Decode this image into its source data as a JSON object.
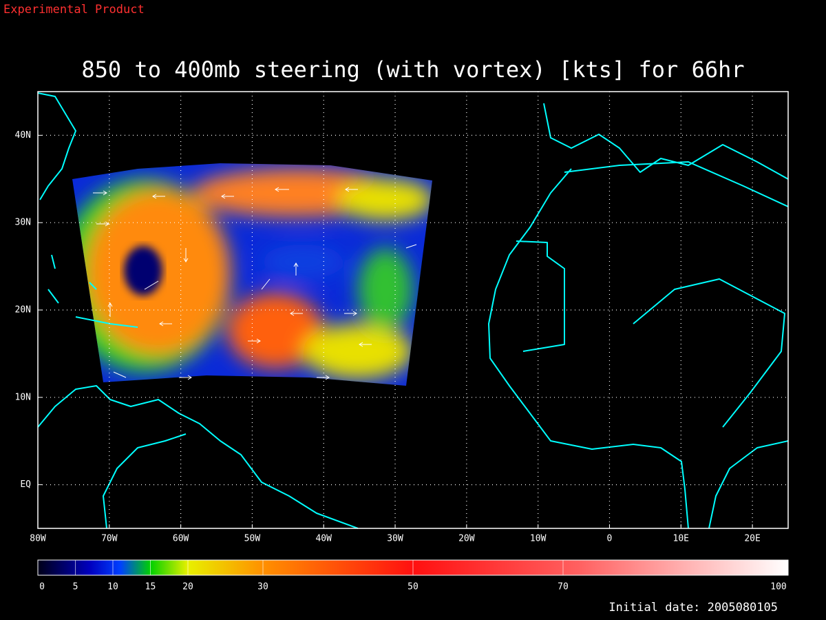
{
  "header": {
    "label": "Experimental Product"
  },
  "chart_data": {
    "type": "map",
    "title": "850 to 400mb steering (with vortex) [kts] for 66hr",
    "xlim": [
      -80,
      25
    ],
    "ylim": [
      -5,
      45
    ],
    "xticks": [
      {
        "value": -80,
        "label": "80W"
      },
      {
        "value": -70,
        "label": "70W"
      },
      {
        "value": -60,
        "label": "60W"
      },
      {
        "value": -50,
        "label": "50W"
      },
      {
        "value": -40,
        "label": "40W"
      },
      {
        "value": -30,
        "label": "30W"
      },
      {
        "value": -20,
        "label": "20W"
      },
      {
        "value": -10,
        "label": "10W"
      },
      0,
      {
        "value": 10,
        "label": "10E"
      },
      {
        "value": 20,
        "label": "20E"
      }
    ],
    "yticks": [
      {
        "value": 0,
        "label": "EQ"
      },
      {
        "value": 10,
        "label": "10N"
      },
      {
        "value": 20,
        "label": "20N"
      },
      {
        "value": 30,
        "label": "30N"
      },
      {
        "value": 40,
        "label": "40N"
      }
    ],
    "grid": true,
    "colorbar": {
      "lim": [
        0,
        100
      ],
      "ticks": [
        0,
        5,
        10,
        15,
        20,
        30,
        50,
        70,
        100
      ]
    },
    "footnote": "Initial date: 2005080105"
  }
}
